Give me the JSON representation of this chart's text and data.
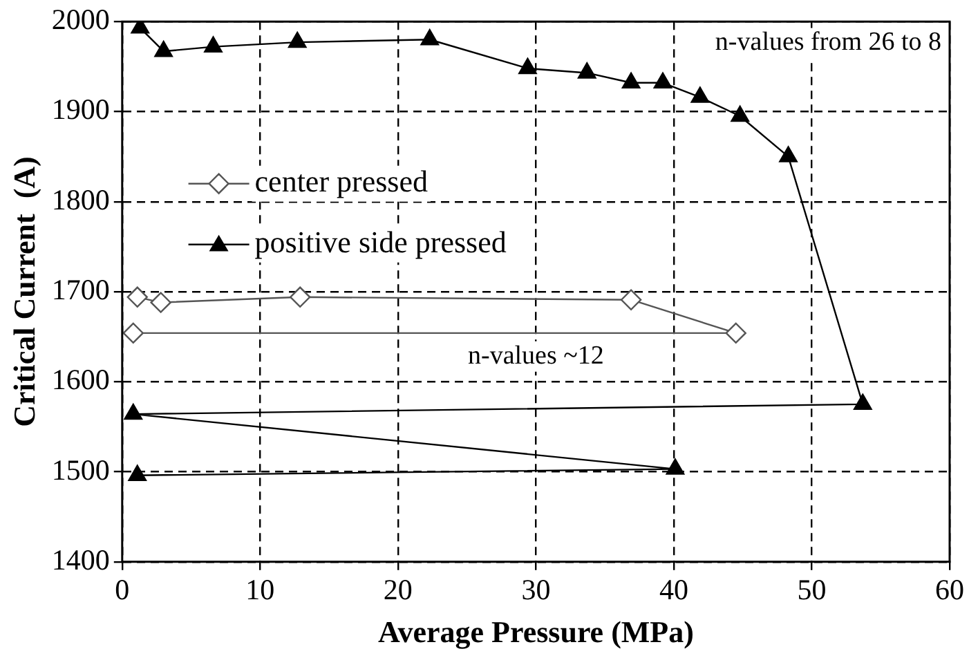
{
  "chart_data": {
    "type": "line",
    "xlabel": "Average Pressure (MPa)",
    "ylabel": "Critical Current  (A)",
    "xlim": [
      0,
      60
    ],
    "xticks": [
      0,
      10,
      20,
      30,
      40,
      50,
      60
    ],
    "ylim": [
      1400,
      2000
    ],
    "yticks": [
      1400,
      1500,
      1600,
      1700,
      1800,
      1900,
      2000
    ],
    "grid": true,
    "legend": "top left",
    "line_style": "solid",
    "annotations": [
      "n-values from 26 to 8",
      "n-values ~12"
    ],
    "series": [
      {
        "name": "center pressed",
        "color": "#555555",
        "marker": "diamond",
        "x": [
          1.1,
          2.8,
          12.9,
          36.9,
          44.5,
          0.8
        ],
        "values": [
          1694,
          1688,
          1694,
          1691,
          1654,
          1654
        ]
      },
      {
        "name": "positive side pressed",
        "color": "#000000",
        "marker": "triangle",
        "x": [
          1.3,
          3.0,
          6.6,
          12.7,
          22.3,
          29.4,
          33.7,
          36.9,
          39.2,
          41.9,
          44.8,
          48.3,
          53.7,
          0.8,
          40.1,
          1.1
        ],
        "values": [
          1993,
          1967,
          1972,
          1977,
          1980,
          1948,
          1943,
          1932,
          1932,
          1916,
          1895,
          1850,
          1575,
          1564,
          1503,
          1496
        ]
      }
    ]
  }
}
